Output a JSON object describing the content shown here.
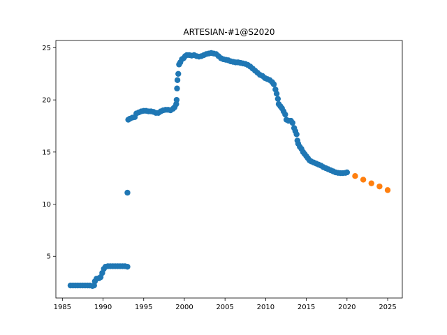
{
  "chart_data": {
    "type": "scatter",
    "title": "ARTESIAN-#1@S2020",
    "xlabel": "",
    "ylabel": "",
    "xlim": [
      1984.2,
      2026.8
    ],
    "ylim": [
      1.0,
      25.7
    ],
    "x_ticks": [
      1985,
      1990,
      1995,
      2000,
      2005,
      2010,
      2015,
      2020,
      2025
    ],
    "y_ticks": [
      5,
      10,
      15,
      20,
      25
    ],
    "grid": false,
    "legend": "none",
    "series": [
      {
        "color": "#1f77b4",
        "points": [
          [
            1986.0,
            2.2
          ],
          [
            1986.3,
            2.2
          ],
          [
            1986.6,
            2.2
          ],
          [
            1986.9,
            2.2
          ],
          [
            1987.2,
            2.2
          ],
          [
            1987.5,
            2.2
          ],
          [
            1987.8,
            2.2
          ],
          [
            1988.1,
            2.2
          ],
          [
            1988.4,
            2.2
          ],
          [
            1988.7,
            2.15
          ],
          [
            1988.9,
            2.2
          ],
          [
            1989.0,
            2.6
          ],
          [
            1989.2,
            2.85
          ],
          [
            1989.5,
            2.9
          ],
          [
            1989.7,
            3.0
          ],
          [
            1989.9,
            3.4
          ],
          [
            1990.1,
            3.8
          ],
          [
            1990.3,
            4.0
          ],
          [
            1990.6,
            4.05
          ],
          [
            1990.9,
            4.05
          ],
          [
            1991.2,
            4.05
          ],
          [
            1991.5,
            4.05
          ],
          [
            1991.8,
            4.05
          ],
          [
            1992.1,
            4.05
          ],
          [
            1992.4,
            4.05
          ],
          [
            1992.7,
            4.05
          ],
          [
            1993.0,
            4.0
          ],
          [
            1993.0,
            11.1
          ],
          [
            1993.1,
            18.1
          ],
          [
            1993.3,
            18.2
          ],
          [
            1993.6,
            18.3
          ],
          [
            1993.9,
            18.35
          ],
          [
            1994.1,
            18.7
          ],
          [
            1994.4,
            18.8
          ],
          [
            1994.7,
            18.9
          ],
          [
            1995.0,
            18.95
          ],
          [
            1995.3,
            18.95
          ],
          [
            1995.6,
            18.9
          ],
          [
            1995.9,
            18.9
          ],
          [
            1996.2,
            18.85
          ],
          [
            1996.5,
            18.75
          ],
          [
            1996.8,
            18.75
          ],
          [
            1997.1,
            18.9
          ],
          [
            1997.4,
            19.0
          ],
          [
            1997.7,
            19.05
          ],
          [
            1998.0,
            19.05
          ],
          [
            1998.3,
            19.0
          ],
          [
            1998.6,
            19.15
          ],
          [
            1998.8,
            19.3
          ],
          [
            1999.0,
            19.6
          ],
          [
            1999.05,
            20.0
          ],
          [
            1999.1,
            21.1
          ],
          [
            1999.15,
            21.9
          ],
          [
            1999.25,
            22.5
          ],
          [
            1999.35,
            23.4
          ],
          [
            1999.5,
            23.6
          ],
          [
            1999.7,
            23.9
          ],
          [
            1999.9,
            24.0
          ],
          [
            2000.1,
            24.2
          ],
          [
            2000.3,
            24.3
          ],
          [
            2000.6,
            24.3
          ],
          [
            2000.9,
            24.25
          ],
          [
            2001.2,
            24.3
          ],
          [
            2001.5,
            24.2
          ],
          [
            2001.8,
            24.15
          ],
          [
            2002.1,
            24.2
          ],
          [
            2002.4,
            24.3
          ],
          [
            2002.7,
            24.4
          ],
          [
            2003.0,
            24.45
          ],
          [
            2003.3,
            24.5
          ],
          [
            2003.6,
            24.45
          ],
          [
            2003.9,
            24.4
          ],
          [
            2004.2,
            24.2
          ],
          [
            2004.5,
            24.0
          ],
          [
            2004.8,
            23.9
          ],
          [
            2005.1,
            23.85
          ],
          [
            2005.4,
            23.8
          ],
          [
            2005.7,
            23.7
          ],
          [
            2006.0,
            23.65
          ],
          [
            2006.3,
            23.6
          ],
          [
            2006.6,
            23.6
          ],
          [
            2006.9,
            23.55
          ],
          [
            2007.2,
            23.5
          ],
          [
            2007.5,
            23.45
          ],
          [
            2007.8,
            23.35
          ],
          [
            2008.1,
            23.2
          ],
          [
            2008.4,
            23.0
          ],
          [
            2008.7,
            22.8
          ],
          [
            2009.0,
            22.6
          ],
          [
            2009.3,
            22.4
          ],
          [
            2009.6,
            22.3
          ],
          [
            2009.9,
            22.1
          ],
          [
            2010.2,
            22.0
          ],
          [
            2010.5,
            21.9
          ],
          [
            2010.8,
            21.7
          ],
          [
            2011.0,
            21.5
          ],
          [
            2011.2,
            21.0
          ],
          [
            2011.35,
            20.6
          ],
          [
            2011.5,
            20.1
          ],
          [
            2011.6,
            19.6
          ],
          [
            2011.8,
            19.4
          ],
          [
            2012.0,
            19.2
          ],
          [
            2012.2,
            18.9
          ],
          [
            2012.4,
            18.6
          ],
          [
            2012.55,
            18.1
          ],
          [
            2012.8,
            18.0
          ],
          [
            2013.1,
            18.0
          ],
          [
            2013.3,
            17.8
          ],
          [
            2013.5,
            17.3
          ],
          [
            2013.65,
            17.0
          ],
          [
            2013.8,
            16.7
          ],
          [
            2013.9,
            16.1
          ],
          [
            2014.0,
            15.8
          ],
          [
            2014.2,
            15.5
          ],
          [
            2014.4,
            15.3
          ],
          [
            2014.6,
            15.0
          ],
          [
            2014.8,
            14.8
          ],
          [
            2015.0,
            14.6
          ],
          [
            2015.2,
            14.4
          ],
          [
            2015.4,
            14.2
          ],
          [
            2015.6,
            14.1
          ],
          [
            2015.9,
            14.0
          ],
          [
            2016.2,
            13.9
          ],
          [
            2016.5,
            13.8
          ],
          [
            2016.8,
            13.7
          ],
          [
            2017.1,
            13.55
          ],
          [
            2017.4,
            13.45
          ],
          [
            2017.7,
            13.35
          ],
          [
            2018.0,
            13.25
          ],
          [
            2018.3,
            13.15
          ],
          [
            2018.6,
            13.05
          ],
          [
            2018.9,
            13.0
          ],
          [
            2019.2,
            12.98
          ],
          [
            2019.5,
            12.98
          ],
          [
            2019.8,
            13.0
          ],
          [
            2020.0,
            13.05
          ]
        ]
      },
      {
        "color": "#ff7f0e",
        "points": [
          [
            2021.0,
            12.7
          ],
          [
            2022.0,
            12.35
          ],
          [
            2023.0,
            12.0
          ],
          [
            2024.0,
            11.7
          ],
          [
            2025.0,
            11.35
          ]
        ]
      }
    ]
  }
}
